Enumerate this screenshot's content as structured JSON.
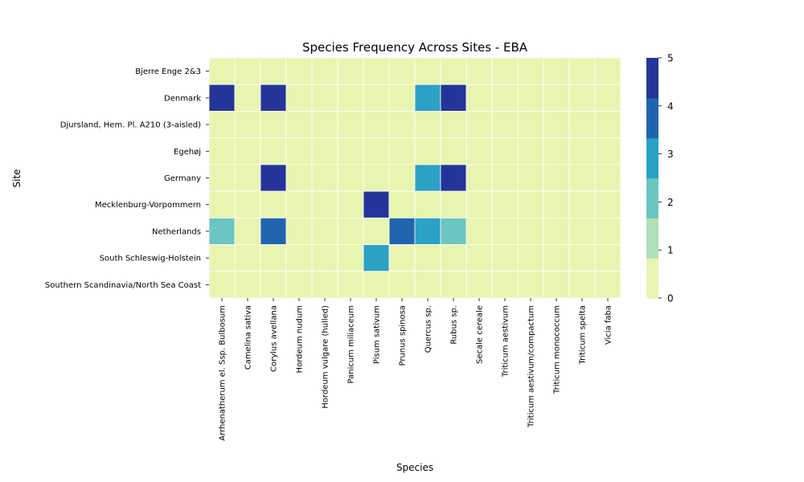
{
  "chart_data": {
    "type": "heatmap",
    "title": "Species Frequency Across Sites - EBA",
    "xlabel": "Species",
    "ylabel": "Site",
    "x_categories": [
      "Arrhenatherum el. Ssp. Bulbosum",
      "Camelina sativa",
      "Corylus avellana",
      "Hordeum nudum",
      "Hordeum vulgare (hulled)",
      "Panicum miliaceum",
      "Pisum sativum",
      "Prunus spinosa",
      "Quercus sp.",
      "Rubus sp.",
      "Secale cereale",
      "Triticum aestivum",
      "Triticum aestivum/compactum",
      "Triticum monococcum",
      "Triticum spelta",
      "Vicia faba"
    ],
    "y_categories": [
      "Bjerre Enge 2&3",
      "Denmark",
      "Djursland, Hem. Pl. A210 (3-aisled)",
      "Egehøj",
      "Germany",
      "Mecklenburg-Vorpommern",
      "Netherlands",
      "South Schleswig-Holstein",
      "Southern Scandinavia/North Sea Coast"
    ],
    "values": [
      [
        0,
        0,
        0,
        0,
        0,
        0,
        0,
        0,
        0,
        0,
        0,
        0,
        0,
        0,
        0,
        0
      ],
      [
        5,
        0,
        5,
        0,
        0,
        0,
        0,
        0,
        3,
        5,
        0,
        0,
        0,
        0,
        0,
        0
      ],
      [
        0,
        0,
        0,
        0,
        0,
        0,
        0,
        0,
        0,
        0,
        0,
        0,
        0,
        0,
        0,
        0
      ],
      [
        0,
        0,
        0,
        0,
        0,
        0,
        0,
        0,
        0,
        0,
        0,
        0,
        0,
        0,
        0,
        0
      ],
      [
        0,
        0,
        5,
        0,
        0,
        0,
        0,
        0,
        3,
        5,
        0,
        0,
        0,
        0,
        0,
        0
      ],
      [
        0,
        0,
        0,
        0,
        0,
        0,
        5,
        0,
        0,
        0,
        0,
        0,
        0,
        0,
        0,
        0
      ],
      [
        2,
        0,
        4,
        0,
        0,
        0,
        0,
        4,
        3,
        2,
        0,
        0,
        0,
        0,
        0,
        0
      ],
      [
        0,
        0,
        0,
        0,
        0,
        0,
        3,
        0,
        0,
        0,
        0,
        0,
        0,
        0,
        0,
        0
      ],
      [
        0,
        0,
        0,
        0,
        0,
        0,
        0,
        0,
        0,
        0,
        0,
        0,
        0,
        0,
        0,
        0
      ]
    ],
    "colorbar": {
      "range": [
        0,
        5
      ],
      "ticks": [
        "0",
        "1",
        "2",
        "3",
        "4",
        "5"
      ],
      "bins": [
        "#edf8b1",
        "#c7e9b4",
        "#7fcdbb",
        "#41b6c4",
        "#2c7fb8",
        "#253494"
      ],
      "band_colors": [
        "#e8f5b0",
        "#b0dfb9",
        "#6bc5c0",
        "#2ba1c6",
        "#2164ae",
        "#24359a"
      ]
    },
    "cell_colors": {
      "0": "#e8f5b0",
      "2": "#6bc5c0",
      "3": "#2ba1c6",
      "4": "#2164ae",
      "5": "#24359a"
    },
    "grid": false
  }
}
